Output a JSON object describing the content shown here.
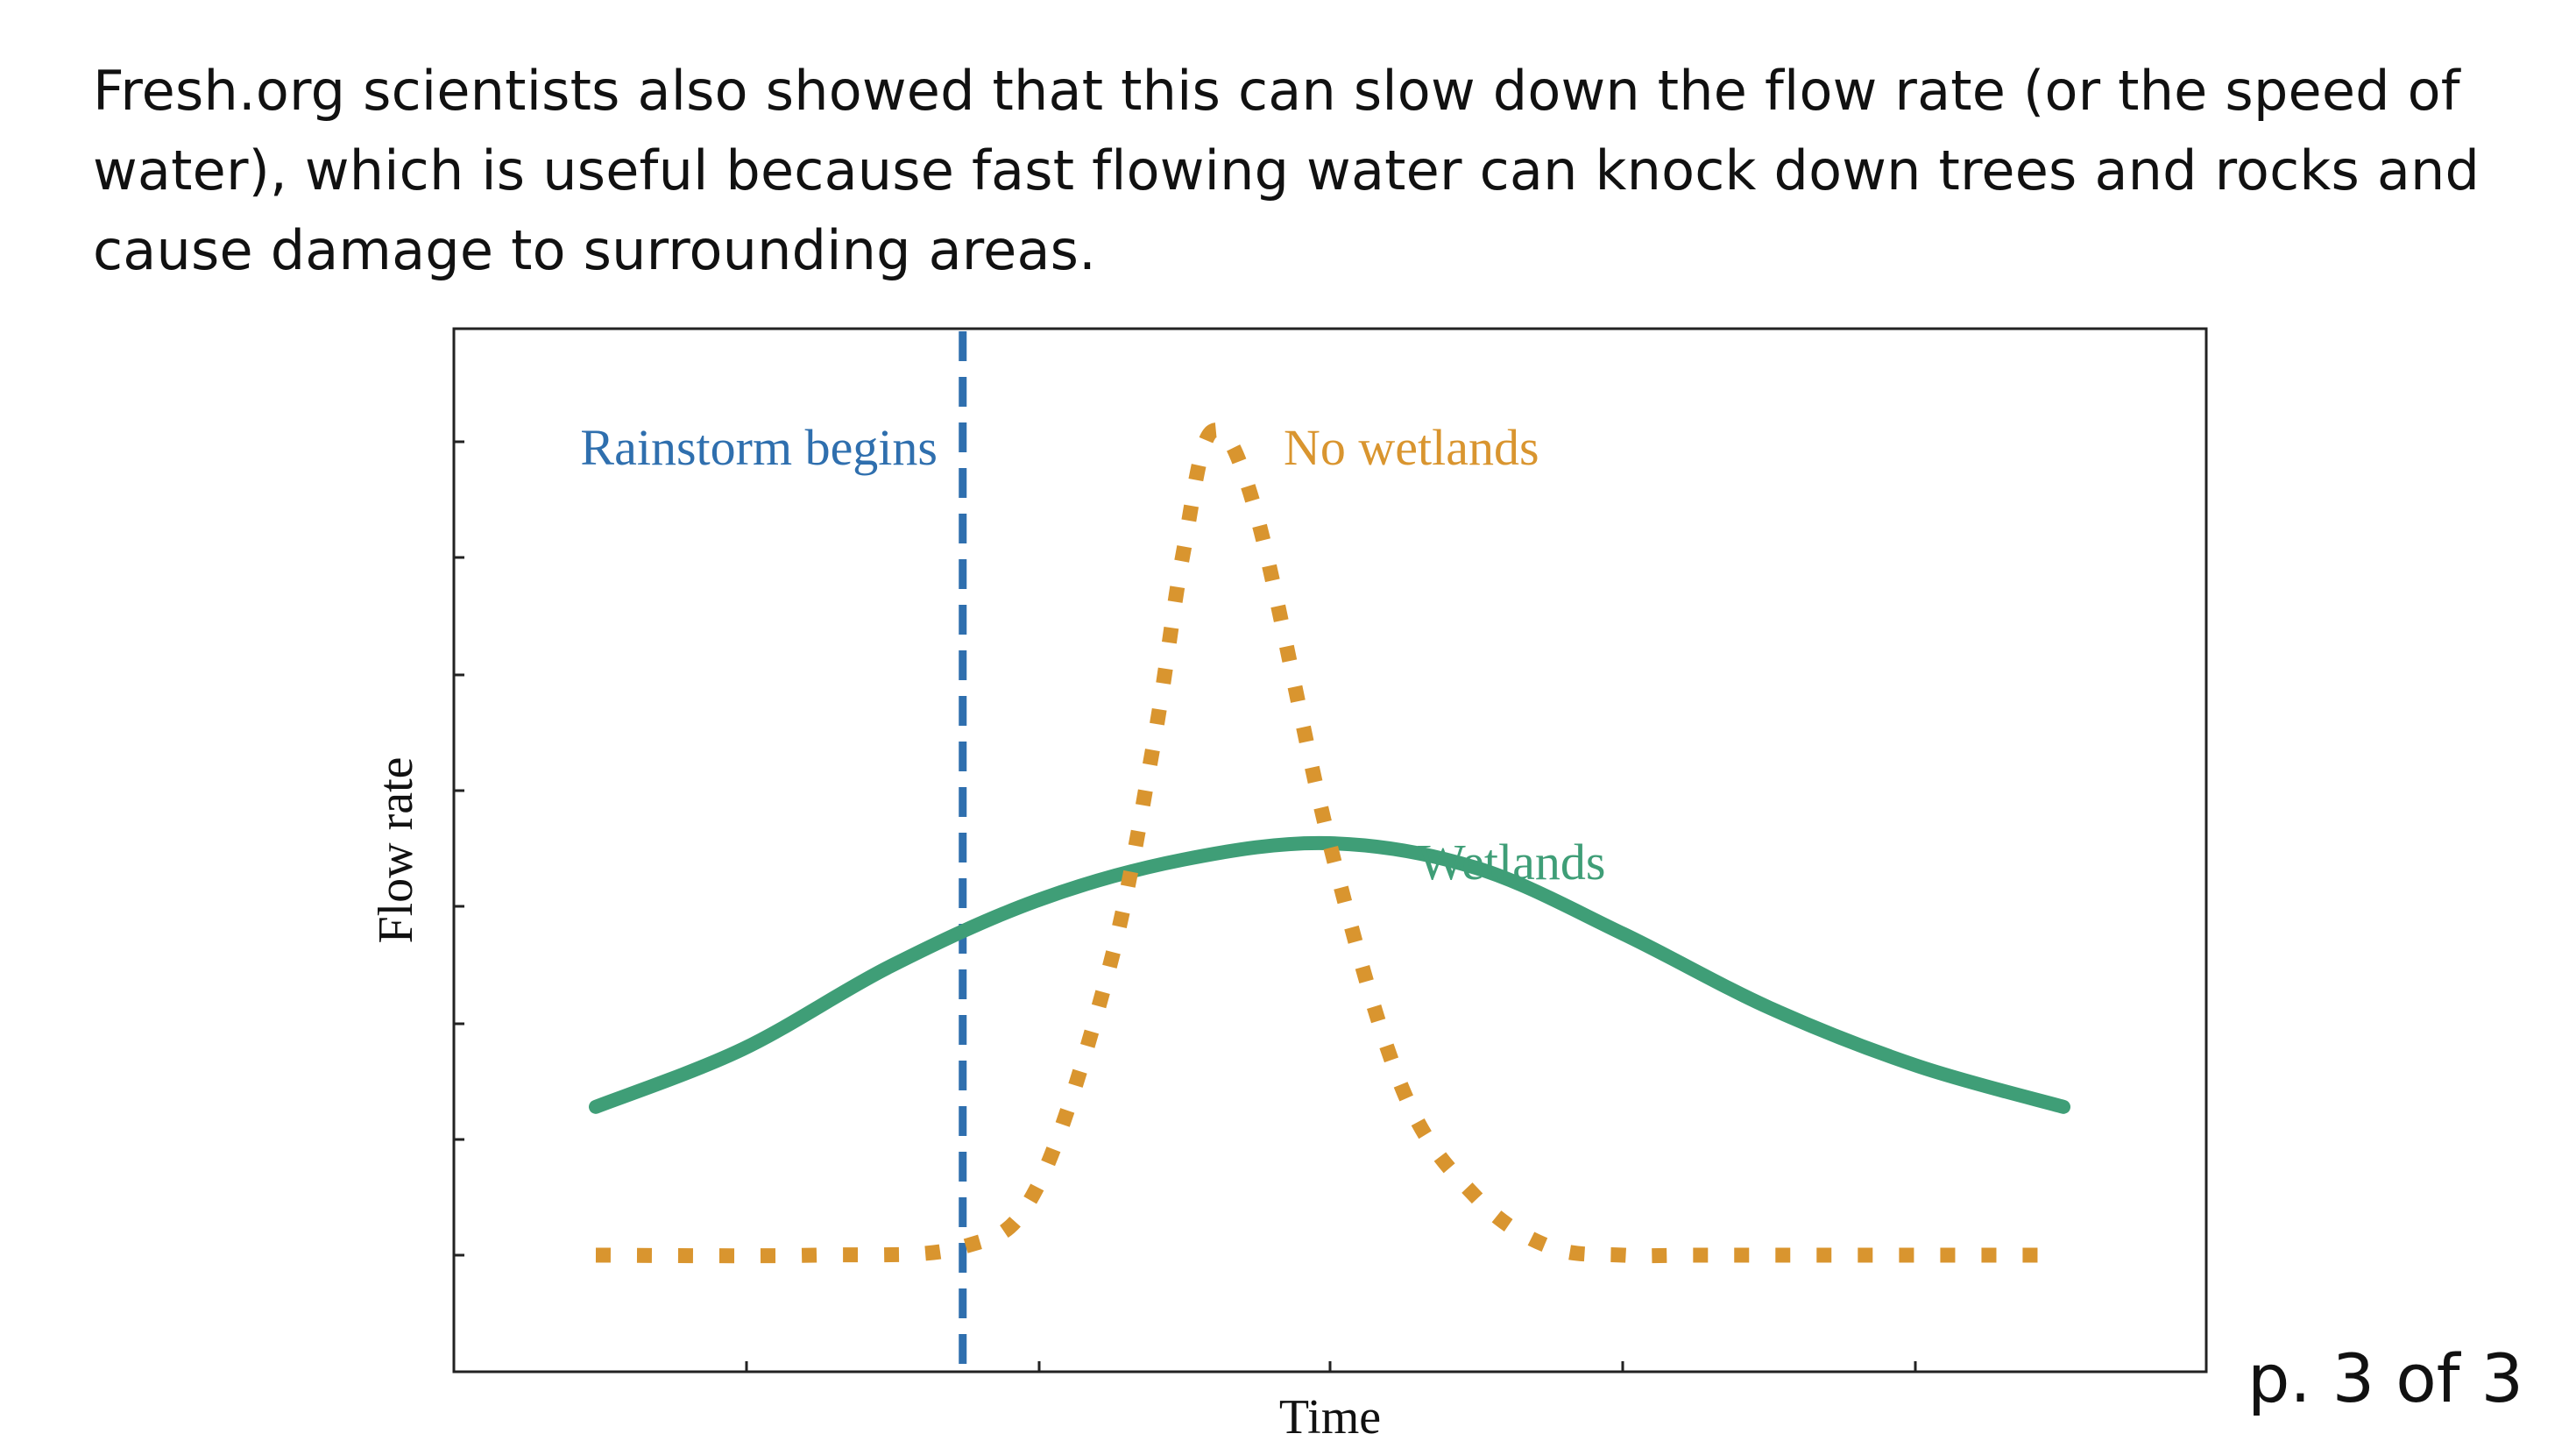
{
  "intro_text": "Fresh.org scientists also showed that this can slow down the flow rate (or the speed of water), which is useful because fast flowing water can knock down trees and rocks and cause damage to surrounding areas.",
  "page_label": "p. 3 of 3",
  "chart_data": {
    "type": "line",
    "title": "",
    "xlabel": "Time",
    "ylabel": "Flow rate",
    "tick_labels_shown": false,
    "grid": false,
    "legend": "none",
    "series": [
      {
        "name": "No wetlands",
        "style": "dotted",
        "color": "#D9952F",
        "x": [
          0.0,
          0.15,
          0.25,
          0.3,
          0.35,
          0.38,
          0.4,
          0.42,
          0.45,
          0.5,
          0.55,
          0.6,
          0.65,
          0.7,
          0.75,
          0.85,
          1.0
        ],
        "y": [
          0.0,
          0.0,
          0.01,
          0.08,
          0.35,
          0.62,
          0.85,
          1.0,
          0.9,
          0.5,
          0.2,
          0.07,
          0.01,
          0.0,
          0.0,
          0.0,
          0.0
        ]
      },
      {
        "name": "Wetlands",
        "style": "solid",
        "color": "#3F9E77",
        "x": [
          0.0,
          0.1,
          0.2,
          0.3,
          0.4,
          0.5,
          0.6,
          0.7,
          0.8,
          0.9,
          1.0
        ],
        "y": [
          0.18,
          0.25,
          0.35,
          0.43,
          0.48,
          0.5,
          0.47,
          0.39,
          0.3,
          0.23,
          0.18
        ]
      }
    ],
    "annotations": [
      {
        "text": "Rainstorm begins",
        "color": "#2F6FAE",
        "marker": "vertical-dashed-line",
        "x": 0.25
      },
      {
        "text": "No wetlands",
        "color": "#D9952F"
      },
      {
        "text": "Wetlands",
        "color": "#3F9E77"
      }
    ]
  }
}
